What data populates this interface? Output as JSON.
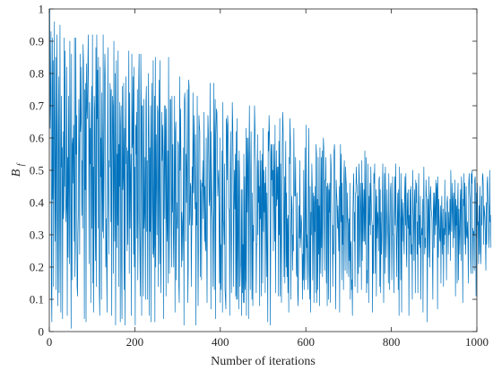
{
  "chart_data": {
    "type": "line",
    "title": "",
    "xlabel": "Number of iterations",
    "ylabel": "B",
    "ylabel_subscript": "f",
    "xlim": [
      0,
      1000
    ],
    "ylim": [
      0,
      1
    ],
    "xticks": [
      0,
      200,
      400,
      600,
      800,
      1000
    ],
    "yticks": [
      0,
      0.1,
      0.2,
      0.3,
      0.4,
      0.5,
      0.6,
      0.7,
      0.8,
      0.9,
      1
    ],
    "xtick_labels": [
      "0",
      "200",
      "400",
      "600",
      "800",
      "1000"
    ],
    "ytick_labels": [
      "0",
      "0.1",
      "0.2",
      "0.3",
      "0.4",
      "0.5",
      "0.6",
      "0.7",
      "0.8",
      "0.9",
      "1"
    ],
    "grid": false,
    "box": true,
    "line_color": "#0072bd",
    "series": [
      {
        "x_start": 1,
        "x_step": 1,
        "values": [
          1.0,
          0.63,
          0.74,
          0.93,
          0.12,
          0.03,
          0.91,
          0.41,
          0.84,
          0.14,
          0.57,
          0.96,
          0.48,
          0.28,
          0.85,
          0.13,
          0.59,
          0.92,
          0.37,
          0.08,
          0.63,
          0.79,
          0.12,
          0.34,
          0.95,
          0.46,
          0.06,
          0.73,
          0.51,
          0.57,
          0.04,
          0.62,
          0.35,
          0.38,
          0.91,
          0.45,
          0.87,
          0.44,
          0.34,
          0.39,
          0.82,
          0.05,
          0.54,
          0.23,
          0.73,
          0.44,
          0.21,
          0.9,
          0.65,
          0.35,
          0.01,
          0.86,
          0.16,
          0.58,
          0.6,
          0.46,
          0.64,
          0.28,
          0.91,
          0.17,
          0.27,
          0.91,
          0.55,
          0.67,
          0.14,
          0.11,
          0.3,
          0.38,
          0.72,
          0.58,
          0.24,
          0.86,
          0.62,
          0.65,
          0.82,
          0.36,
          0.53,
          0.32,
          0.89,
          0.84,
          0.61,
          0.04,
          0.75,
          0.44,
          0.77,
          0.03,
          0.83,
          0.7,
          0.66,
          0.8,
          0.92,
          0.71,
          0.21,
          0.71,
          0.52,
          0.63,
          0.09,
          0.63,
          0.76,
          0.32,
          0.92,
          0.15,
          0.51,
          0.06,
          0.73,
          0.69,
          0.36,
          0.22,
          0.88,
          0.14,
          0.92,
          0.66,
          0.81,
          0.32,
          0.85,
          0.49,
          0.12,
          0.05,
          0.82,
          0.48,
          0.6,
          0.1,
          0.74,
          0.45,
          0.31,
          0.92,
          0.29,
          0.49,
          0.77,
          0.86,
          0.77,
          0.2,
          0.35,
          0.21,
          0.06,
          0.53,
          0.88,
          0.45,
          0.24,
          0.53,
          0.51,
          0.77,
          0.74,
          0.34,
          0.75,
          0.05,
          0.51,
          0.73,
          0.7,
          0.18,
          0.9,
          0.47,
          0.28,
          0.8,
          0.02,
          0.38,
          0.84,
          0.26,
          0.55,
          0.33,
          0.87,
          0.14,
          0.58,
          0.45,
          0.71,
          0.03,
          0.64,
          0.7,
          0.21,
          0.04,
          0.76,
          0.44,
          0.48,
          0.77,
          0.13,
          0.63,
          0.02,
          0.56,
          0.79,
          0.52,
          0.57,
          0.25,
          0.56,
          0.27,
          0.58,
          0.87,
          0.18,
          0.74,
          0.32,
          0.48,
          0.55,
          0.05,
          0.86,
          0.57,
          0.59,
          0.79,
          0.24,
          0.82,
          0.2,
          0.51,
          0.02,
          0.64,
          0.55,
          0.68,
          0.29,
          0.75,
          0.16,
          0.34,
          0.77,
          0.86,
          0.35,
          0.22,
          0.11,
          0.86,
          0.71,
          0.05,
          0.7,
          0.7,
          0.29,
          0.11,
          0.72,
          0.32,
          0.37,
          0.54,
          0.1,
          0.71,
          0.76,
          0.31,
          0.53,
          0.1,
          0.5,
          0.8,
          0.59,
          0.05,
          0.57,
          0.31,
          0.7,
          0.03,
          0.53,
          0.77,
          0.39,
          0.24,
          0.84,
          0.23,
          0.27,
          0.73,
          0.03,
          0.85,
          0.2,
          0.61,
          0.46,
          0.3,
          0.7,
          0.68,
          0.14,
          0.48,
          0.78,
          0.21,
          0.84,
          0.28,
          0.12,
          0.35,
          0.68,
          0.53,
          0.64,
          0.54,
          0.04,
          0.48,
          0.7,
          0.35,
          0.59,
          0.7,
          0.11,
          0.69,
          0.35,
          0.28,
          0.56,
          0.15,
          0.85,
          0.43,
          0.18,
          0.39,
          0.72,
          0.72,
          0.39,
          0.2,
          0.73,
          0.37,
          0.58,
          0.3,
          0.2,
          0.43,
          0.73,
          0.06,
          0.62,
          0.65,
          0.16,
          0.31,
          0.4,
          0.32,
          0.59,
          0.58,
          0.14,
          0.09,
          0.79,
          0.5,
          0.69,
          0.53,
          0.2,
          0.37,
          0.34,
          0.22,
          0.33,
          0.57,
          0.02,
          0.72,
          0.74,
          0.66,
          0.28,
          0.55,
          0.4,
          0.52,
          0.75,
          0.09,
          0.19,
          0.78,
          0.76,
          0.33,
          0.36,
          0.46,
          0.45,
          0.14,
          0.29,
          0.51,
          0.33,
          0.74,
          0.43,
          0.58,
          0.67,
          0.44,
          0.38,
          0.61,
          0.02,
          0.4,
          0.33,
          0.73,
          0.4,
          0.08,
          0.27,
          0.67,
          0.64,
          0.62,
          0.17,
          0.47,
          0.43,
          0.16,
          0.46,
          0.45,
          0.53,
          0.35,
          0.43,
          0.68,
          0.28,
          0.45,
          0.27,
          0.25,
          0.6,
          0.28,
          0.09,
          0.47,
          0.67,
          0.62,
          0.49,
          0.39,
          0.41,
          0.77,
          0.46,
          0.07,
          0.62,
          0.44,
          0.38,
          0.35,
          0.14,
          0.41,
          0.77,
          0.13,
          0.61,
          0.72,
          0.04,
          0.61,
          0.69,
          0.68,
          0.59,
          0.42,
          0.47,
          0.5,
          0.33,
          0.15,
          0.6,
          0.09,
          0.27,
          0.13,
          0.32,
          0.56,
          0.06,
          0.71,
          0.34,
          0.33,
          0.27,
          0.52,
          0.13,
          0.1,
          0.07,
          0.66,
          0.64,
          0.47,
          0.67,
          0.64,
          0.38,
          0.38,
          0.34,
          0.05,
          0.49,
          0.62,
          0.34,
          0.12,
          0.38,
          0.71,
          0.65,
          0.5,
          0.14,
          0.39,
          0.5,
          0.38,
          0.55,
          0.11,
          0.62,
          0.1,
          0.66,
          0.1,
          0.29,
          0.53,
          0.07,
          0.56,
          0.49,
          0.14,
          0.2,
          0.21,
          0.44,
          0.05,
          0.44,
          0.12,
          0.27,
          0.09,
          0.55,
          0.09,
          0.48,
          0.13,
          0.16,
          0.63,
          0.05,
          0.6,
          0.37,
          0.51,
          0.6,
          0.04,
          0.54,
          0.7,
          0.38,
          0.13,
          0.49,
          0.62,
          0.28,
          0.1,
          0.43,
          0.08,
          0.33,
          0.28,
          0.51,
          0.7,
          0.63,
          0.55,
          0.5,
          0.12,
          0.27,
          0.27,
          0.61,
          0.3,
          0.53,
          0.4,
          0.45,
          0.08,
          0.56,
          0.35,
          0.53,
          0.11,
          0.44,
          0.55,
          0.15,
          0.63,
          0.31,
          0.5,
          0.37,
          0.46,
          0.12,
          0.51,
          0.43,
          0.17,
          0.43,
          0.23,
          0.03,
          0.62,
          0.56,
          0.67,
          0.61,
          0.54,
          0.02,
          0.3,
          0.58,
          0.47,
          0.58,
          0.42,
          0.5,
          0.25,
          0.58,
          0.5,
          0.28,
          0.64,
          0.12,
          0.32,
          0.56,
          0.39,
          0.51,
          0.41,
          0.51,
          0.11,
          0.59,
          0.3,
          0.66,
          0.11,
          0.52,
          0.31,
          0.09,
          0.38,
          0.59,
          0.68,
          0.62,
          0.38,
          0.17,
          0.48,
          0.15,
          0.44,
          0.59,
          0.2,
          0.43,
          0.17,
          0.35,
          0.12,
          0.36,
          0.06,
          0.54,
          0.52,
          0.66,
          0.58,
          0.1,
          0.31,
          0.42,
          0.38,
          0.19,
          0.3,
          0.25,
          0.63,
          0.45,
          0.42,
          0.42,
          0.54,
          0.32,
          0.18,
          0.17,
          0.43,
          0.12,
          0.08,
          0.21,
          0.39,
          0.29,
          0.53,
          0.26,
          0.29,
          0.36,
          0.34,
          0.28,
          0.1,
          0.24,
          0.16,
          0.5,
          0.13,
          0.22,
          0.57,
          0.37,
          0.16,
          0.64,
          0.26,
          0.3,
          0.22,
          0.13,
          0.45,
          0.63,
          0.19,
          0.1,
          0.45,
          0.06,
          0.37,
          0.3,
          0.52,
          0.45,
          0.16,
          0.43,
          0.4,
          0.09,
          0.42,
          0.31,
          0.45,
          0.12,
          0.58,
          0.55,
          0.09,
          0.41,
          0.13,
          0.54,
          0.24,
          0.39,
          0.08,
          0.57,
          0.26,
          0.18,
          0.54,
          0.26,
          0.56,
          0.17,
          0.4,
          0.6,
          0.57,
          0.34,
          0.19,
          0.47,
          0.47,
          0.54,
          0.15,
          0.45,
          0.08,
          0.46,
          0.45,
          0.1,
          0.44,
          0.37,
          0.46,
          0.09,
          0.55,
          0.52,
          0.44,
          0.34,
          0.28,
          0.14,
          0.33,
          0.24,
          0.56,
          0.58,
          0.52,
          0.23,
          0.07,
          0.47,
          0.43,
          0.4,
          0.32,
          0.39,
          0.32,
          0.25,
          0.45,
          0.06,
          0.4,
          0.58,
          0.34,
          0.55,
          0.16,
          0.46,
          0.27,
          0.36,
          0.13,
          0.48,
          0.53,
          0.34,
          0.19,
          0.51,
          0.47,
          0.45,
          0.18,
          0.43,
          0.35,
          0.33,
          0.17,
          0.35,
          0.22,
          0.46,
          0.1,
          0.27,
          0.28,
          0.13,
          0.16,
          0.05,
          0.36,
          0.45,
          0.49,
          0.28,
          0.37,
          0.14,
          0.43,
          0.43,
          0.51,
          0.46,
          0.45,
          0.12,
          0.42,
          0.18,
          0.52,
          0.48,
          0.2,
          0.32,
          0.46,
          0.38,
          0.13,
          0.53,
          0.22,
          0.46,
          0.28,
          0.38,
          0.44,
          0.28,
          0.56,
          0.27,
          0.4,
          0.54,
          0.12,
          0.19,
          0.15,
          0.52,
          0.37,
          0.09,
          0.42,
          0.33,
          0.46,
          0.3,
          0.51,
          0.41,
          0.35,
          0.33,
          0.06,
          0.33,
          0.18,
          0.49,
          0.46,
          0.52,
          0.18,
          0.37,
          0.44,
          0.11,
          0.42,
          0.29,
          0.37,
          0.35,
          0.25,
          0.47,
          0.48,
          0.14,
          0.44,
          0.12,
          0.37,
          0.24,
          0.29,
          0.43,
          0.52,
          0.28,
          0.09,
          0.34,
          0.49,
          0.18,
          0.51,
          0.35,
          0.23,
          0.32,
          0.44,
          0.33,
          0.3,
          0.15,
          0.49,
          0.32,
          0.13,
          0.34,
          0.44,
          0.46,
          0.35,
          0.16,
          0.29,
          0.48,
          0.3,
          0.3,
          0.12,
          0.33,
          0.48,
          0.33,
          0.52,
          0.39,
          0.17,
          0.29,
          0.35,
          0.43,
          0.13,
          0.44,
          0.05,
          0.51,
          0.36,
          0.34,
          0.16,
          0.49,
          0.06,
          0.41,
          0.28,
          0.35,
          0.4,
          0.28,
          0.24,
          0.42,
          0.48,
          0.33,
          0.49,
          0.25,
          0.2,
          0.43,
          0.36,
          0.32,
          0.44,
          0.05,
          0.36,
          0.3,
          0.44,
          0.24,
          0.45,
          0.24,
          0.27,
          0.1,
          0.5,
          0.39,
          0.33,
          0.22,
          0.44,
          0.39,
          0.12,
          0.47,
          0.4,
          0.46,
          0.24,
          0.34,
          0.12,
          0.41,
          0.49,
          0.27,
          0.36,
          0.26,
          0.42,
          0.1,
          0.29,
          0.32,
          0.3,
          0.41,
          0.06,
          0.35,
          0.51,
          0.33,
          0.24,
          0.29,
          0.26,
          0.47,
          0.42,
          0.42,
          0.03,
          0.31,
          0.41,
          0.23,
          0.48,
          0.34,
          0.2,
          0.42,
          0.45,
          0.38,
          0.37,
          0.35,
          0.23,
          0.1,
          0.37,
          0.43,
          0.26,
          0.43,
          0.38,
          0.3,
          0.47,
          0.33,
          0.46,
          0.44,
          0.07,
          0.48,
          0.23,
          0.41,
          0.35,
          0.29,
          0.28,
          0.39,
          0.15,
          0.36,
          0.42,
          0.24,
          0.31,
          0.38,
          0.14,
          0.32,
          0.27,
          0.47,
          0.3,
          0.37,
          0.32,
          0.16,
          0.4,
          0.42,
          0.36,
          0.24,
          0.37,
          0.3,
          0.32,
          0.41,
          0.22,
          0.5,
          0.42,
          0.31,
          0.39,
          0.46,
          0.26,
          0.41,
          0.43,
          0.29,
          0.34,
          0.47,
          0.11,
          0.41,
          0.33,
          0.39,
          0.15,
          0.4,
          0.46,
          0.16,
          0.38,
          0.31,
          0.24,
          0.4,
          0.44,
          0.22,
          0.48,
          0.45,
          0.34,
          0.09,
          0.41,
          0.39,
          0.49,
          0.27,
          0.46,
          0.31,
          0.24,
          0.45,
          0.3,
          0.29,
          0.34,
          0.28,
          0.15,
          0.46,
          0.49,
          0.43,
          0.41,
          0.23,
          0.18,
          0.49,
          0.46,
          0.5,
          0.18,
          0.32,
          0.3,
          0.31,
          0.19,
          0.47,
          0.48,
          0.42,
          0.11,
          0.43,
          0.29,
          0.46,
          0.33,
          0.34,
          0.21,
          0.39,
          0.24,
          0.45,
          0.35,
          0.21,
          0.26,
          0.42,
          0.33,
          0.48,
          0.49,
          0.45,
          0.27,
          0.39,
          0.37,
          0.35,
          0.28,
          0.19,
          0.4,
          0.27,
          0.46,
          0.48,
          0.4,
          0.39,
          0.26,
          0.3,
          0.5,
          0.34,
          0.36,
          0.26
        ]
      }
    ]
  }
}
